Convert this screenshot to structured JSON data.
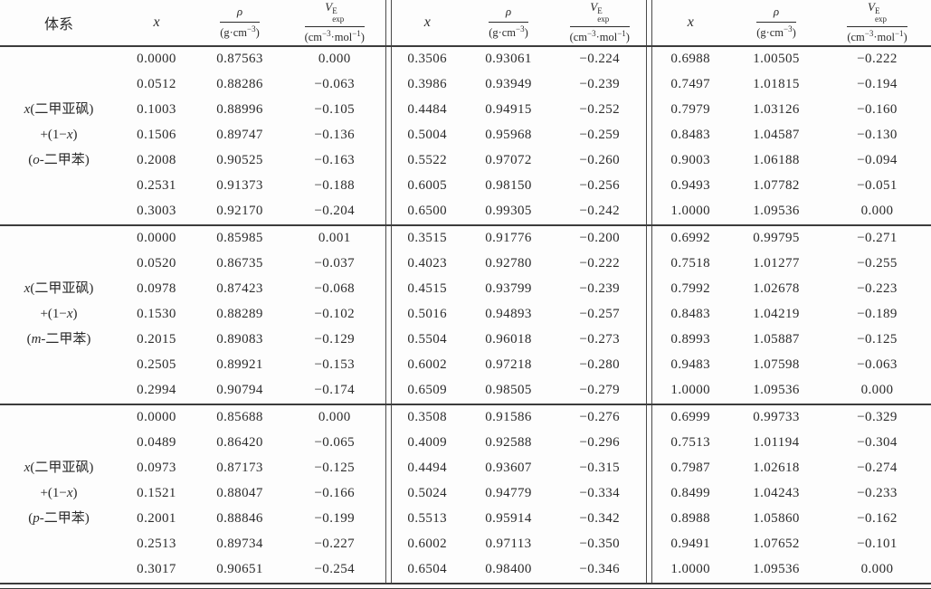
{
  "page": {
    "background": "#fdfdfd",
    "text_color": "#2b2b2b",
    "rule_color": "#3c3c3c"
  },
  "table": {
    "header": {
      "system": "体系",
      "x": "x",
      "rho": {
        "num": "ρ",
        "den_pre": "(g·cm",
        "den_sup": "−3",
        "den_post": ")"
      },
      "v": {
        "sym": "V",
        "sup": "E",
        "sub": "exp",
        "den_pre": "(cm",
        "den_sup1": "−3",
        "den_mid": "·mol",
        "den_sup2": "−1",
        "den_post": ")"
      }
    },
    "blocks": [
      {
        "label_lines": [
          "x(二甲亚砜)",
          "+(1−x)",
          "(o-二甲苯)"
        ],
        "rows": [
          [
            "0.0000",
            "0.87563",
            "0.000",
            "0.3506",
            "0.93061",
            "−0.224",
            "0.6988",
            "1.00505",
            "−0.222"
          ],
          [
            "0.0512",
            "0.88286",
            "−0.063",
            "0.3986",
            "0.93949",
            "−0.239",
            "0.7497",
            "1.01815",
            "−0.194"
          ],
          [
            "0.1003",
            "0.88996",
            "−0.105",
            "0.4484",
            "0.94915",
            "−0.252",
            "0.7979",
            "1.03126",
            "−0.160"
          ],
          [
            "0.1506",
            "0.89747",
            "−0.136",
            "0.5004",
            "0.95968",
            "−0.259",
            "0.8483",
            "1.04587",
            "−0.130"
          ],
          [
            "0.2008",
            "0.90525",
            "−0.163",
            "0.5522",
            "0.97072",
            "−0.260",
            "0.9003",
            "1.06188",
            "−0.094"
          ],
          [
            "0.2531",
            "0.91373",
            "−0.188",
            "0.6005",
            "0.98150",
            "−0.256",
            "0.9493",
            "1.07782",
            "−0.051"
          ],
          [
            "0.3003",
            "0.92170",
            "−0.204",
            "0.6500",
            "0.99305",
            "−0.242",
            "1.0000",
            "1.09536",
            "0.000"
          ]
        ]
      },
      {
        "label_lines": [
          "x(二甲亚砜)",
          "+(1−x)",
          "(m-二甲苯)"
        ],
        "rows": [
          [
            "0.0000",
            "0.85985",
            "0.001",
            "0.3515",
            "0.91776",
            "−0.200",
            "0.6992",
            "0.99795",
            "−0.271"
          ],
          [
            "0.0520",
            "0.86735",
            "−0.037",
            "0.4023",
            "0.92780",
            "−0.222",
            "0.7518",
            "1.01277",
            "−0.255"
          ],
          [
            "0.0978",
            "0.87423",
            "−0.068",
            "0.4515",
            "0.93799",
            "−0.239",
            "0.7992",
            "1.02678",
            "−0.223"
          ],
          [
            "0.1530",
            "0.88289",
            "−0.102",
            "0.5016",
            "0.94893",
            "−0.257",
            "0.8483",
            "1.04219",
            "−0.189"
          ],
          [
            "0.2015",
            "0.89083",
            "−0.129",
            "0.5504",
            "0.96018",
            "−0.273",
            "0.8993",
            "1.05887",
            "−0.125"
          ],
          [
            "0.2505",
            "0.89921",
            "−0.153",
            "0.6002",
            "0.97218",
            "−0.280",
            "0.9483",
            "1.07598",
            "−0.063"
          ],
          [
            "0.2994",
            "0.90794",
            "−0.174",
            "0.6509",
            "0.98505",
            "−0.279",
            "1.0000",
            "1.09536",
            "0.000"
          ]
        ]
      },
      {
        "label_lines": [
          "x(二甲亚砜)",
          "+(1−x)",
          "(p-二甲苯)"
        ],
        "rows": [
          [
            "0.0000",
            "0.85688",
            "0.000",
            "0.3508",
            "0.91586",
            "−0.276",
            "0.6999",
            "0.99733",
            "−0.329"
          ],
          [
            "0.0489",
            "0.86420",
            "−0.065",
            "0.4009",
            "0.92588",
            "−0.296",
            "0.7513",
            "1.01194",
            "−0.304"
          ],
          [
            "0.0973",
            "0.87173",
            "−0.125",
            "0.4494",
            "0.93607",
            "−0.315",
            "0.7987",
            "1.02618",
            "−0.274"
          ],
          [
            "0.1521",
            "0.88047",
            "−0.166",
            "0.5024",
            "0.94779",
            "−0.334",
            "0.8499",
            "1.04243",
            "−0.233"
          ],
          [
            "0.2001",
            "0.88846",
            "−0.199",
            "0.5513",
            "0.95914",
            "−0.342",
            "0.8988",
            "1.05860",
            "−0.162"
          ],
          [
            "0.2513",
            "0.89734",
            "−0.227",
            "0.6002",
            "0.97113",
            "−0.350",
            "0.9491",
            "1.07652",
            "−0.101"
          ],
          [
            "0.3017",
            "0.90651",
            "−0.254",
            "0.6504",
            "0.98400",
            "−0.346",
            "1.0000",
            "1.09536",
            "0.000"
          ]
        ]
      }
    ]
  }
}
